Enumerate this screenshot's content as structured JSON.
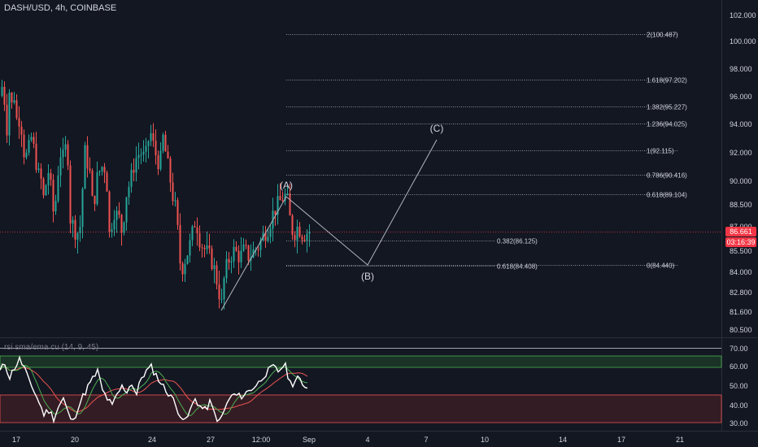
{
  "header": {
    "symbol_line": "DASH/USD, 4h, COINBASE",
    "indicator_label": "rsi sma/ema cu (14, 9, 45)"
  },
  "price_axis": {
    "ticks": [
      "102.000",
      "100.000",
      "98.000",
      "96.000",
      "94.000",
      "92.000",
      "90.000",
      "88.500",
      "87.000",
      "85.500",
      "84.000",
      "82.800",
      "81.600",
      "80.500"
    ],
    "current_price": "86.661",
    "countdown": "03:16:39"
  },
  "rsi_axis": {
    "ticks": [
      "70.00",
      "60.00",
      "50.00",
      "40.00",
      "30.00"
    ]
  },
  "time_axis": {
    "ticks": [
      "17",
      "20",
      "24",
      "27",
      "12:00",
      "Sep",
      "4",
      "7",
      "10",
      "14",
      "17",
      "21"
    ]
  },
  "fib_levels": [
    {
      "label": "2(100.487)",
      "value": 100.487
    },
    {
      "label": "1.618(97.202)",
      "value": 97.202
    },
    {
      "label": "1.382(95.227)",
      "value": 95.227
    },
    {
      "label": "1.236(94.025)",
      "value": 94.025
    },
    {
      "label": "1(92.115)",
      "value": 92.115
    },
    {
      "label": "0.786(90.416)",
      "value": 90.416
    },
    {
      "label": "0.618(89.104)",
      "value": 89.104
    },
    {
      "label": "0(84.440)",
      "value": 84.44
    }
  ],
  "retracement_levels": [
    {
      "label": "0.382(86.125)",
      "value": 86.125
    },
    {
      "label": "0.618(84.408)",
      "value": 84.408
    }
  ],
  "wave_labels": [
    "(A)",
    "(B)",
    "(C)"
  ],
  "colors": {
    "background": "#131722",
    "up": "#26a69a",
    "down": "#ef5350",
    "rsi_line": "#ffffff",
    "rsi_sma": "#4caf50",
    "rsi_ema": "#ef5350",
    "upper_zone": "#1e3a2a",
    "lower_zone": "#3a1a22",
    "current_price_tag": "#f23645"
  }
}
